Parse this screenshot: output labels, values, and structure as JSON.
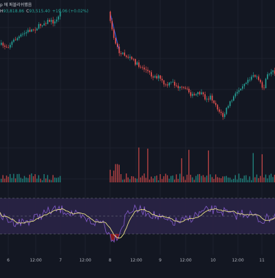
{
  "header": {
    "title_fragment": "p 에 퍼블리쉬했음",
    "high_label": "H",
    "high_value": "93,818.86",
    "close_label": "C",
    "close_value": "93,515.40",
    "change_value": "+19.06 (+0.02%)"
  },
  "x_axis_labels": [
    "6",
    "12:00",
    "7",
    "12:00",
    "8",
    "12:00",
    "9",
    "12:00",
    "10",
    "12:00",
    "11"
  ],
  "colors": {
    "background": "#131722",
    "up_candle": "#26a69a",
    "down_candle": "#ef5350",
    "grid": "#1e222d",
    "rsi_line": "#7e57c2",
    "rsi_ma_line": "#f0e68c",
    "rsi_band_fill": "#2a2346",
    "oversold_fill": "#b71c1c",
    "trend_line": "#2962ff"
  },
  "indicators": {
    "oscillator": "RSI",
    "oscillator_upper_band": 70,
    "oscillator_lower_band": 30,
    "oscillator_range": [
      0,
      100
    ]
  }
}
